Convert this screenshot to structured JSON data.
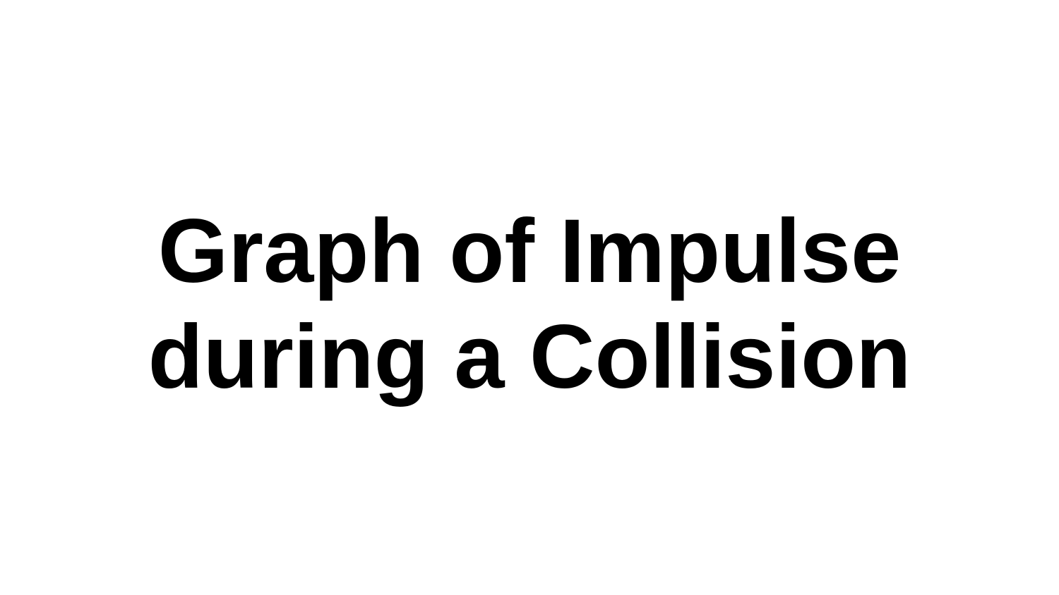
{
  "slide": {
    "title_lines": [
      "Graph of Impulse",
      "during a Collision"
    ]
  },
  "colors": {
    "background": "#ffffff",
    "text": "#000000"
  }
}
